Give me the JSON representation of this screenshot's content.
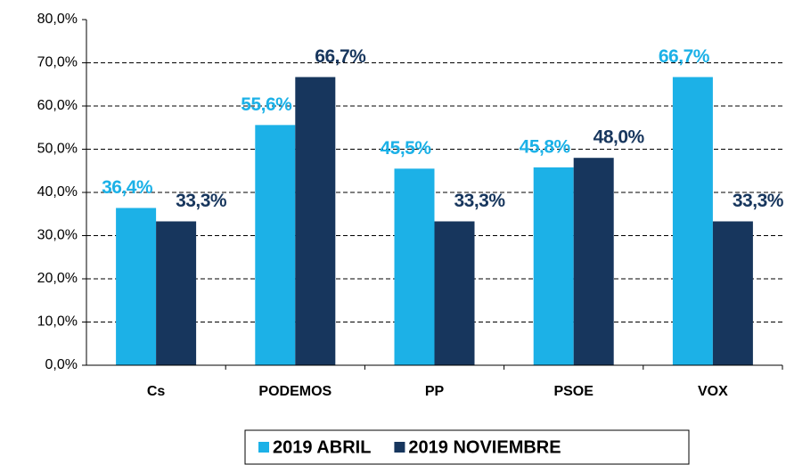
{
  "chart_data": {
    "type": "bar",
    "categories": [
      "Cs",
      "PODEMOS",
      "PP",
      "PSOE",
      "VOX"
    ],
    "series": [
      {
        "name": "2019 ABRIL",
        "color": "#1cb1e7",
        "values": [
          36.4,
          55.6,
          45.5,
          45.8,
          66.7
        ],
        "value_labels": [
          "36,4%",
          "55,6%",
          "45,5%",
          "45,8%",
          "66,7%"
        ]
      },
      {
        "name": "2019 NOVIEMBRE",
        "color": "#17365d",
        "values": [
          33.3,
          66.7,
          33.3,
          48.0,
          33.3
        ],
        "value_labels": [
          "33,3%",
          "66,7%",
          "33,3%",
          "48,0%",
          "33,3%"
        ]
      }
    ],
    "ylim": [
      0,
      80
    ],
    "yticks": [
      {
        "value": 0,
        "label": "0,0%"
      },
      {
        "value": 10,
        "label": "10,0%"
      },
      {
        "value": 20,
        "label": "20,0%"
      },
      {
        "value": 30,
        "label": "30,0%"
      },
      {
        "value": 40,
        "label": "40,0%"
      },
      {
        "value": 50,
        "label": "50,0%"
      },
      {
        "value": 60,
        "label": "60,0%"
      },
      {
        "value": 70,
        "label": "70,0%"
      },
      {
        "value": 80,
        "label": "80,0%"
      }
    ],
    "grid": true,
    "legend": "bottom"
  }
}
